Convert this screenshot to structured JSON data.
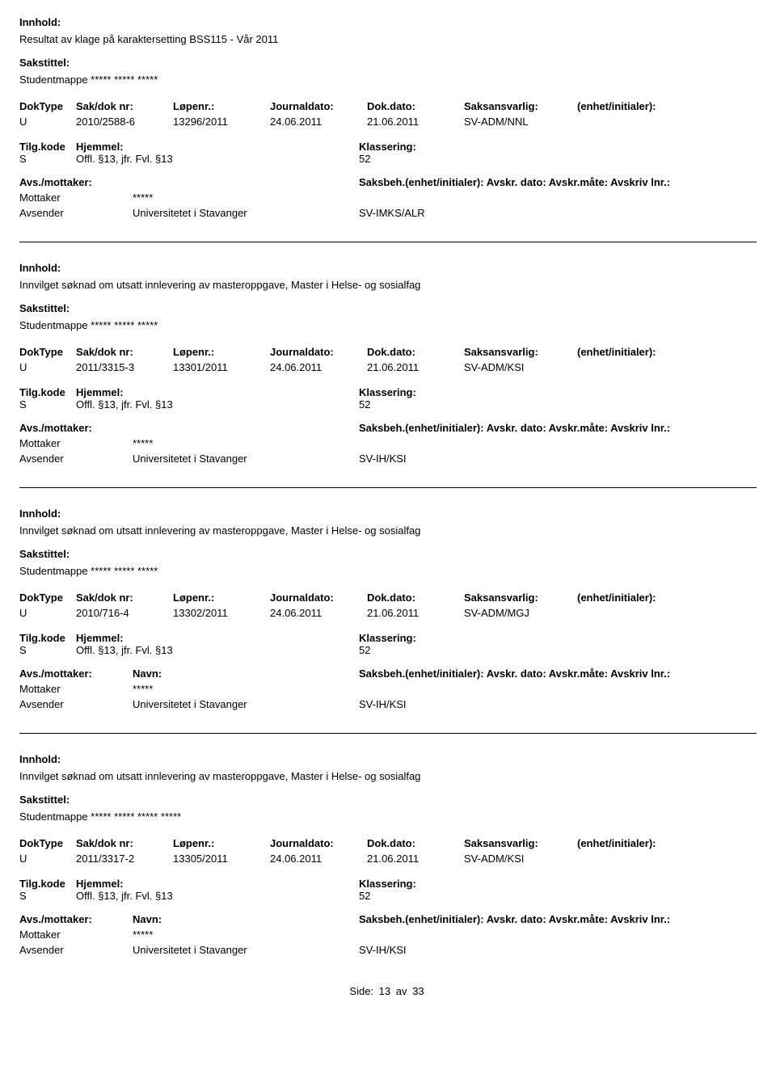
{
  "labels": {
    "innhold": "Innhold:",
    "sakstittel": "Sakstittel:",
    "doktype": "DokType",
    "sakdoknr": "Sak/dok nr:",
    "lopenr": "Løpenr.:",
    "journaldato": "Journaldato:",
    "dokdato": "Dok.dato:",
    "saksansvarlig": "Saksansvarlig:",
    "enhetinitialer": "(enhet/initialer):",
    "tilgkode": "Tilg.kode",
    "hjemmel": "Hjemmel:",
    "klassering": "Klassering:",
    "avsmottaker": "Avs./mottaker:",
    "navn": "Navn:",
    "saksbeh_full": "Saksbeh.(enhet/initialer): Avskr. dato: Avskr.måte: Avskriv lnr.:",
    "mottaker": "Mottaker",
    "avsender": "Avsender",
    "side": "Side:",
    "av": "av"
  },
  "page": {
    "current": "13",
    "total": "33"
  },
  "records": [
    {
      "innhold": "Resultat av klage på karaktersetting BSS115 - Vår 2011",
      "sakstittel": "Studentmappe ***** ***** *****",
      "doktype": "U",
      "sakdoknr": "2010/2588-6",
      "lopenr": "13296/2011",
      "journaldato": "24.06.2011",
      "dokdato": "21.06.2011",
      "saksansvarlig": "SV-ADM/NNL",
      "tilgkode": "S",
      "hjemmel": "Offl. §13, jfr. Fvl. §13",
      "klassering": "52",
      "mottaker_navn": "*****",
      "avsender_navn": "Universitetet i Stavanger",
      "avsender_enhet": "SV-IMKS/ALR",
      "show_avs_header": false
    },
    {
      "innhold": "Innvilget søknad om utsatt innlevering av masteroppgave, Master i Helse- og sosialfag",
      "sakstittel": "Studentmappe ***** ***** *****",
      "doktype": "U",
      "sakdoknr": "2011/3315-3",
      "lopenr": "13301/2011",
      "journaldato": "24.06.2011",
      "dokdato": "21.06.2011",
      "saksansvarlig": "SV-ADM/KSI",
      "tilgkode": "S",
      "hjemmel": "Offl. §13, jfr. Fvl. §13",
      "klassering": "52",
      "mottaker_navn": "*****",
      "avsender_navn": "Universitetet i Stavanger",
      "avsender_enhet": "SV-IH/KSI",
      "show_avs_header": false
    },
    {
      "innhold": "Innvilget søknad om utsatt innlevering av masteroppgave, Master i Helse- og sosialfag",
      "sakstittel": "Studentmappe ***** ***** *****",
      "doktype": "U",
      "sakdoknr": "2010/716-4",
      "lopenr": "13302/2011",
      "journaldato": "24.06.2011",
      "dokdato": "21.06.2011",
      "saksansvarlig": "SV-ADM/MGJ",
      "tilgkode": "S",
      "hjemmel": "Offl. §13, jfr. Fvl. §13",
      "klassering": "52",
      "mottaker_navn": "*****",
      "avsender_navn": "Universitetet i Stavanger",
      "avsender_enhet": "SV-IH/KSI",
      "show_avs_header": true
    },
    {
      "innhold": "Innvilget søknad om utsatt innlevering av masteroppgave, Master i Helse- og sosialfag",
      "sakstittel": "Studentmappe ***** ***** ***** *****",
      "doktype": "U",
      "sakdoknr": "2011/3317-2",
      "lopenr": "13305/2011",
      "journaldato": "24.06.2011",
      "dokdato": "21.06.2011",
      "saksansvarlig": "SV-ADM/KSI",
      "tilgkode": "S",
      "hjemmel": "Offl. §13, jfr. Fvl. §13",
      "klassering": "52",
      "mottaker_navn": "*****",
      "avsender_navn": "Universitetet i Stavanger",
      "avsender_enhet": "SV-IH/KSI",
      "show_avs_header": true
    }
  ]
}
